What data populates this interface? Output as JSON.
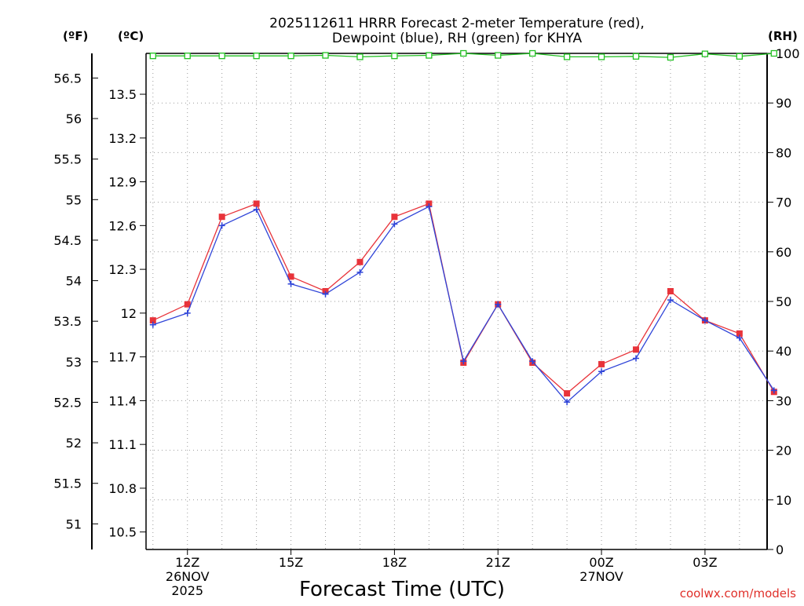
{
  "chart_data": {
    "type": "line",
    "title": [
      "2025112611 HRRR Forecast 2-meter Temperature (red),",
      "Dewpoint (blue), RH (green) for KHYA"
    ],
    "xlabel": "Forecast Time (UTC)",
    "units": {
      "fahrenheit": "(ºF)",
      "celsius": "(ºC)",
      "rh": "(RH)"
    },
    "x": [
      11,
      12,
      13,
      14,
      15,
      16,
      17,
      18,
      19,
      20,
      21,
      22,
      23,
      24,
      25,
      26,
      27,
      28,
      29
    ],
    "xlim": [
      10.8,
      28.8
    ],
    "x_ticks": [
      {
        "x": 12,
        "lines": [
          "12Z",
          "26NOV",
          "2025"
        ]
      },
      {
        "x": 15,
        "lines": [
          "15Z"
        ]
      },
      {
        "x": 18,
        "lines": [
          "18Z"
        ]
      },
      {
        "x": 21,
        "lines": [
          "21Z"
        ]
      },
      {
        "x": 24,
        "lines": [
          "00Z",
          "27NOV"
        ]
      },
      {
        "x": 27,
        "lines": [
          "03Z"
        ]
      }
    ],
    "celsius_axis": {
      "range": [
        10.38,
        13.78
      ],
      "ticks": [
        "10.5",
        "10.8",
        "11.1",
        "11.4",
        "11.7",
        "12",
        "12.3",
        "12.6",
        "12.9",
        "13.2",
        "13.5"
      ]
    },
    "fahrenheit_axis": {
      "range": [
        50.684,
        56.804
      ],
      "ticks": [
        "51",
        "51.5",
        "52",
        "52.5",
        "53",
        "53.5",
        "54",
        "54.5",
        "55",
        "55.5",
        "56",
        "56.5"
      ]
    },
    "rh_axis": {
      "range": [
        0,
        100
      ],
      "ticks": [
        "0",
        "10",
        "20",
        "30",
        "40",
        "50",
        "60",
        "70",
        "80",
        "90",
        "100"
      ]
    },
    "series": [
      {
        "name": "Temperature",
        "unit": "C",
        "color": "#e8333a",
        "marker": "square",
        "values": [
          11.95,
          12.06,
          12.66,
          12.75,
          12.25,
          12.15,
          12.35,
          12.66,
          12.75,
          11.66,
          12.06,
          11.66,
          11.45,
          11.65,
          11.75,
          12.15,
          11.95,
          11.86,
          11.46
        ]
      },
      {
        "name": "Dewpoint",
        "unit": "C",
        "color": "#2f44d8",
        "marker": "plus",
        "values": [
          11.92,
          12.0,
          12.6,
          12.71,
          12.2,
          12.13,
          12.28,
          12.61,
          12.73,
          11.67,
          12.06,
          11.67,
          11.39,
          11.6,
          11.69,
          12.09,
          11.95,
          11.83,
          11.47
        ]
      },
      {
        "name": "RH",
        "unit": "%",
        "color": "#22c022",
        "marker": "hollow-square",
        "values": [
          99.5,
          99.5,
          99.5,
          99.5,
          99.5,
          99.6,
          99.3,
          99.5,
          99.6,
          100,
          99.6,
          100,
          99.3,
          99.3,
          99.4,
          99.2,
          99.9,
          99.4,
          100
        ]
      }
    ]
  },
  "credit": "coolwx.com/models"
}
